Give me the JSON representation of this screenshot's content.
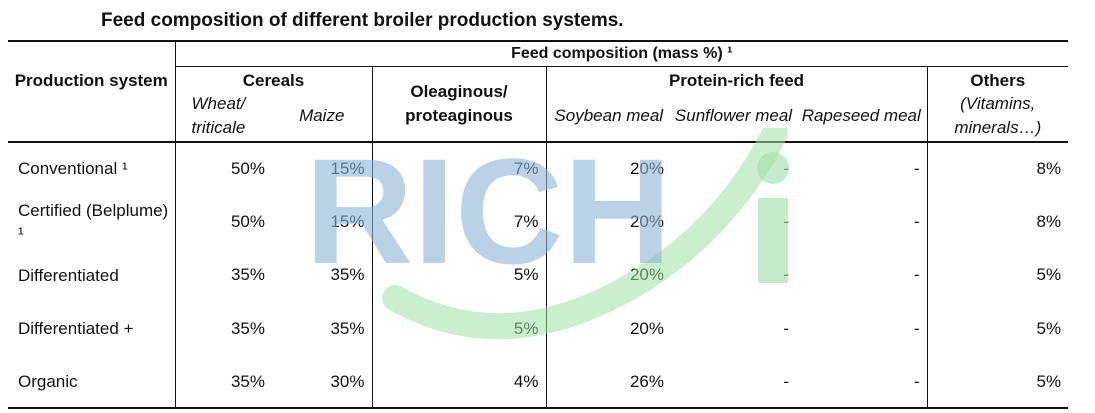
{
  "title": "Feed composition of different broiler production systems.",
  "header": {
    "feed_composition": "Feed composition (mass %) ¹",
    "production_system": "Production system",
    "cereals": "Cereals",
    "wheat_triticale": "Wheat/ triticale",
    "maize": "Maize",
    "oleaginous": "Oleaginous/ proteaginous",
    "protein_rich": "Protein-rich feed",
    "soybean_meal": "Soybean meal",
    "sunflower_meal": "Sunflower meal",
    "rapeseed_meal": "Rapeseed meal",
    "others": "Others",
    "others_sub": "(Vitamins, minerals…)"
  },
  "rows": [
    {
      "system": "Conventional ¹",
      "wheat": "50%",
      "maize": "15%",
      "oleaginous": "7%",
      "soybean": "20%",
      "sunflower": "-",
      "rapeseed": "-",
      "others": "8%"
    },
    {
      "system": "Certified (Belplume) ¹",
      "wheat": "50%",
      "maize": "15%",
      "oleaginous": "7%",
      "soybean": "20%",
      "sunflower": "-",
      "rapeseed": "-",
      "others": "8%"
    },
    {
      "system": "Differentiated",
      "wheat": "35%",
      "maize": "35%",
      "oleaginous": "5%",
      "soybean": "20%",
      "sunflower": "-",
      "rapeseed": "-",
      "others": "5%"
    },
    {
      "system": "Differentiated +",
      "wheat": "35%",
      "maize": "35%",
      "oleaginous": "5%",
      "soybean": "20%",
      "sunflower": "-",
      "rapeseed": "-",
      "others": "5%"
    },
    {
      "system": "Organic",
      "wheat": "35%",
      "maize": "30%",
      "oleaginous": "4%",
      "soybean": "26%",
      "sunflower": "-",
      "rapeseed": "-",
      "others": "5%"
    }
  ],
  "watermark": {
    "text": "RICHi",
    "blue": "#8fb3d6",
    "green": "#9fe0a6"
  }
}
